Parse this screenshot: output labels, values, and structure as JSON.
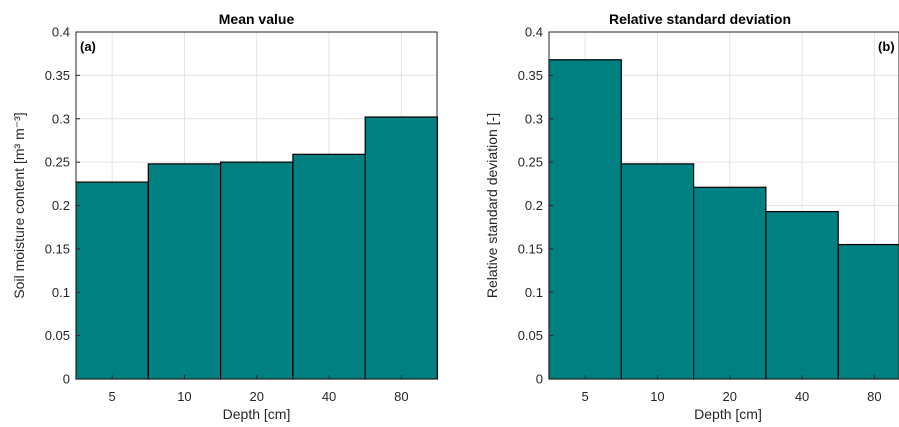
{
  "chart_data": [
    {
      "type": "bar",
      "title": "Mean value",
      "panel_label": "(a)",
      "xlabel": "Depth [cm]",
      "ylabel": "Soil moisture content [m³ m⁻³]",
      "categories": [
        "5",
        "10",
        "20",
        "40",
        "80"
      ],
      "values": [
        0.227,
        0.248,
        0.25,
        0.259,
        0.302
      ],
      "ylim": [
        0,
        0.4
      ],
      "yticks": [
        "0",
        "0.05",
        "0.1",
        "0.15",
        "0.2",
        "0.25",
        "0.3",
        "0.35",
        "0.4"
      ],
      "grid": true,
      "bar_color": "#008080"
    },
    {
      "type": "bar",
      "title": "Relative standard deviation",
      "panel_label": "(b)",
      "xlabel": "Depth [cm]",
      "ylabel": "Relative standard deviation [-]",
      "categories": [
        "5",
        "10",
        "20",
        "40",
        "80"
      ],
      "values": [
        0.368,
        0.248,
        0.221,
        0.193,
        0.155
      ],
      "ylim": [
        0,
        0.4
      ],
      "yticks": [
        "0",
        "0.05",
        "0.1",
        "0.15",
        "0.2",
        "0.25",
        "0.3",
        "0.35",
        "0.4"
      ],
      "grid": true,
      "bar_color": "#008080"
    }
  ]
}
